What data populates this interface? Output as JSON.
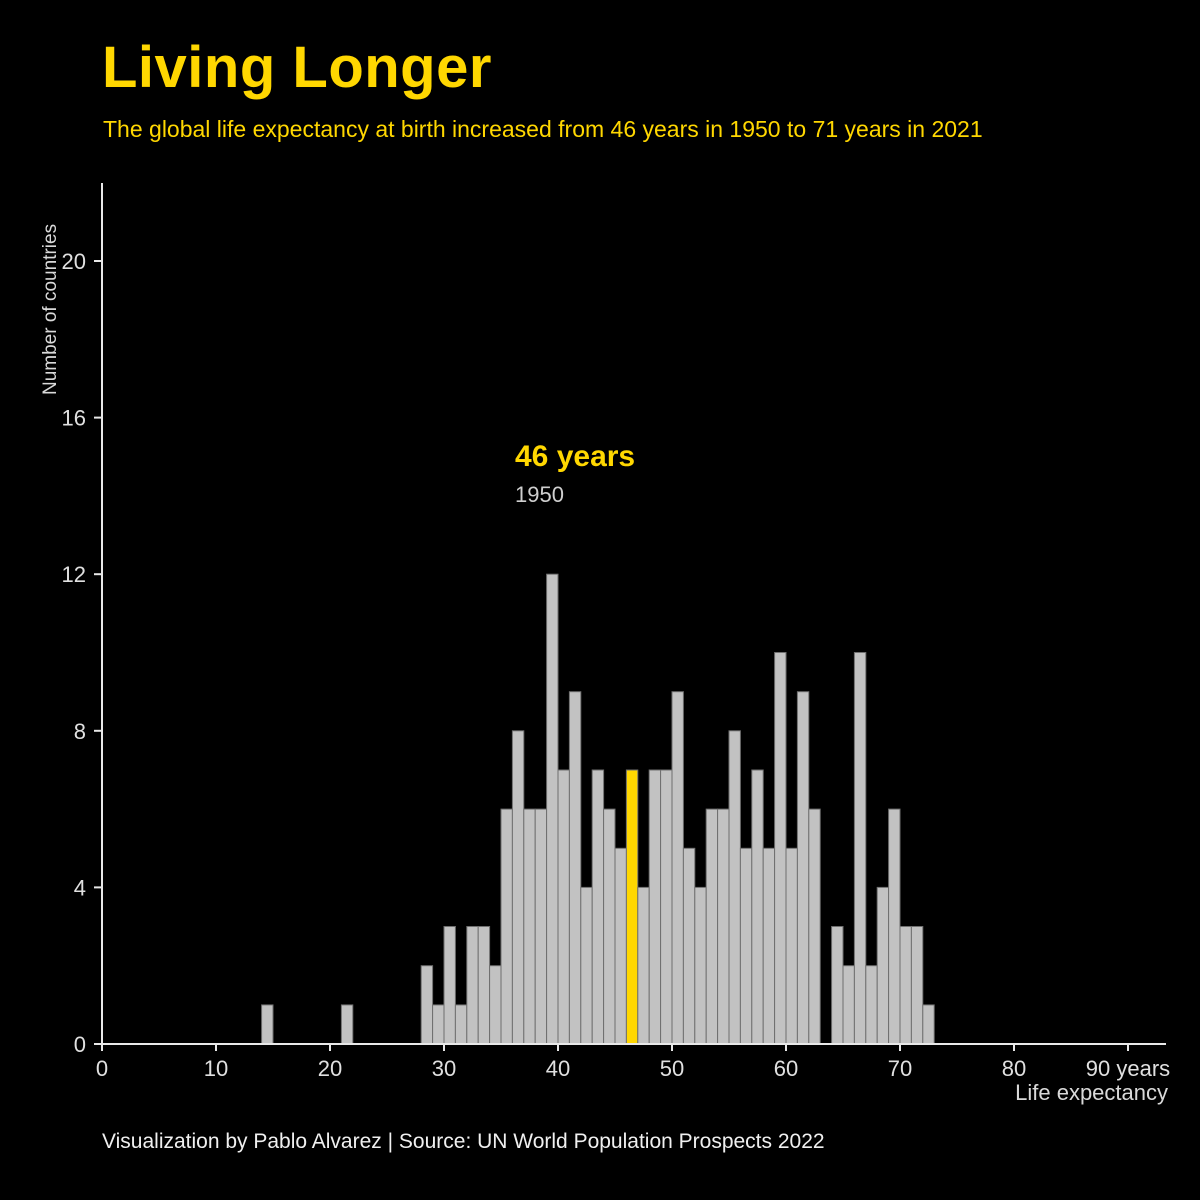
{
  "title": "Living Longer",
  "subtitle": "The global life expectancy at birth increased from 46 years in 1950 to 71 years in 2021",
  "annotation": {
    "label": "46 years",
    "sublabel": "1950"
  },
  "footer": "Visualization by Pablo Alvarez | Source: UN World Population Prospects 2022",
  "colors": {
    "background": "#000000",
    "accent": "#FFD700",
    "bar": "#c2c2c2",
    "bar_stroke": "#6f6f6f",
    "axis": "#e8e8e8",
    "text": "#e0e0e0"
  },
  "chart_data": {
    "type": "bar",
    "title": "Living Longer",
    "subtitle": "The global life expectancy at birth increased from 46 years in 1950 to 71 years in 2021",
    "xlabel": "Life expectancy",
    "ylabel": "Number of countries",
    "x_ticks": [
      0,
      10,
      20,
      30,
      40,
      50,
      60,
      70,
      80,
      90
    ],
    "x_tick_labels": [
      "0",
      "10",
      "20",
      "30",
      "40",
      "50",
      "60",
      "70",
      "80",
      "90 years"
    ],
    "y_ticks": [
      0,
      4,
      8,
      12,
      16,
      20
    ],
    "xlim": [
      0,
      93
    ],
    "ylim": [
      0,
      22
    ],
    "grid": false,
    "legend": false,
    "highlight_x": 46,
    "highlight_color": "#FFD700",
    "x": [
      14,
      21,
      28,
      29,
      30,
      31,
      32,
      33,
      34,
      35,
      36,
      37,
      38,
      39,
      40,
      41,
      42,
      43,
      44,
      45,
      46,
      47,
      48,
      49,
      50,
      51,
      52,
      53,
      54,
      55,
      56,
      57,
      58,
      59,
      60,
      61,
      62,
      64,
      65,
      66,
      67,
      68,
      69,
      70,
      71,
      72
    ],
    "values": [
      1,
      1,
      2,
      1,
      3,
      1,
      3,
      3,
      2,
      6,
      8,
      6,
      6,
      12,
      7,
      9,
      4,
      7,
      6,
      5,
      7,
      4,
      7,
      7,
      9,
      5,
      4,
      6,
      6,
      8,
      5,
      7,
      5,
      10,
      5,
      9,
      6,
      3,
      2,
      10,
      2,
      4,
      6,
      3,
      3,
      1
    ]
  }
}
